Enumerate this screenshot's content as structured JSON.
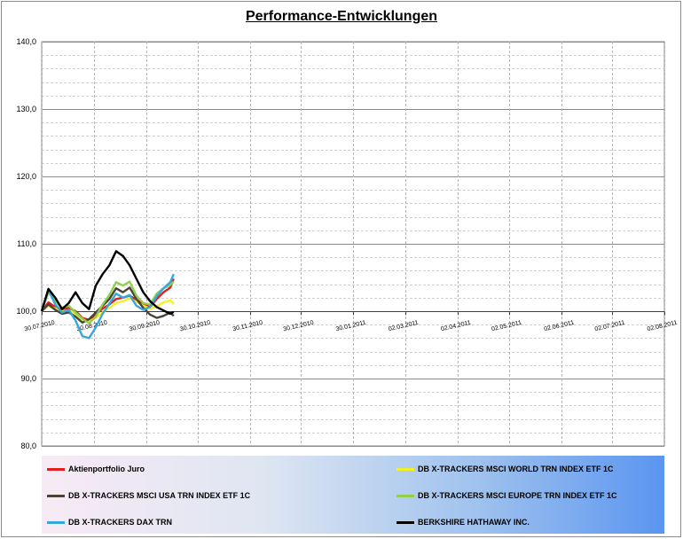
{
  "title": "Performance-Entwicklungen",
  "chart_data": {
    "type": "line",
    "title": "Performance-Entwicklungen",
    "ylim": [
      80,
      140
    ],
    "y_ticks": [
      "80,0",
      "90,0",
      "100,0",
      "110,0",
      "120,0",
      "130,0",
      "140,0"
    ],
    "x_tick_labels": [
      "30.07.2010",
      "30.08.2010",
      "30.09.2010",
      "30.10.2010",
      "30.11.2010",
      "30.12.2010",
      "30.01.2011",
      "02.03.2011",
      "02.04.2011",
      "02.05.2011",
      "02.06.2011",
      "02.07.2011",
      "02.08.2011"
    ],
    "grid": true,
    "legend_position": "bottom",
    "series": [
      {
        "name": "Aktienportfolio Juro",
        "color": "#e0201b",
        "points": [
          [
            "30.07.2010",
            100.0
          ],
          [
            "03.08.2010",
            101.3
          ],
          [
            "07.08.2010",
            100.6
          ],
          [
            "11.08.2010",
            100.2
          ],
          [
            "15.08.2010",
            100.5
          ],
          [
            "19.08.2010",
            100.0
          ],
          [
            "23.08.2010",
            99.0
          ],
          [
            "27.08.2010",
            98.7
          ],
          [
            "31.08.2010",
            99.5
          ],
          [
            "04.09.2010",
            100.4
          ],
          [
            "08.09.2010",
            101.0
          ],
          [
            "12.09.2010",
            101.8
          ],
          [
            "16.09.2010",
            102.0
          ],
          [
            "20.09.2010",
            102.3
          ],
          [
            "24.09.2010",
            101.7
          ],
          [
            "28.09.2010",
            101.1
          ],
          [
            "02.10.2010",
            100.6
          ],
          [
            "06.10.2010",
            101.8
          ],
          [
            "10.10.2010",
            102.8
          ],
          [
            "14.10.2010",
            103.5
          ],
          [
            "16.10.2010",
            104.8
          ]
        ]
      },
      {
        "name": "DB X-TRACKERS MSCI WORLD TRN INDEX ETF 1C",
        "color": "#f1f12a",
        "points": [
          [
            "30.07.2010",
            100.0
          ],
          [
            "03.08.2010",
            100.8
          ],
          [
            "07.08.2010",
            100.4
          ],
          [
            "11.08.2010",
            100.0
          ],
          [
            "15.08.2010",
            100.1
          ],
          [
            "19.08.2010",
            99.6
          ],
          [
            "23.08.2010",
            98.7
          ],
          [
            "27.08.2010",
            98.5
          ],
          [
            "31.08.2010",
            99.0
          ],
          [
            "04.09.2010",
            99.8
          ],
          [
            "08.09.2010",
            100.5
          ],
          [
            "12.09.2010",
            101.2
          ],
          [
            "16.09.2010",
            101.5
          ],
          [
            "20.09.2010",
            101.9
          ],
          [
            "24.09.2010",
            101.4
          ],
          [
            "28.09.2010",
            100.8
          ],
          [
            "02.10.2010",
            100.4
          ],
          [
            "06.10.2010",
            100.7
          ],
          [
            "10.10.2010",
            101.3
          ],
          [
            "14.10.2010",
            101.6
          ],
          [
            "16.10.2010",
            101.1
          ]
        ]
      },
      {
        "name": "DB X-TRACKERS MSCI USA TRN INDEX ETF 1C",
        "color": "#4a4336",
        "points": [
          [
            "30.07.2010",
            100.0
          ],
          [
            "03.08.2010",
            101.0
          ],
          [
            "07.08.2010",
            100.2
          ],
          [
            "11.08.2010",
            99.6
          ],
          [
            "15.08.2010",
            99.8
          ],
          [
            "19.08.2010",
            99.2
          ],
          [
            "23.08.2010",
            98.3
          ],
          [
            "27.08.2010",
            98.8
          ],
          [
            "31.08.2010",
            99.8
          ],
          [
            "04.09.2010",
            100.8
          ],
          [
            "08.09.2010",
            101.8
          ],
          [
            "12.09.2010",
            103.4
          ],
          [
            "16.09.2010",
            102.8
          ],
          [
            "20.09.2010",
            103.5
          ],
          [
            "24.09.2010",
            101.8
          ],
          [
            "28.09.2010",
            100.5
          ],
          [
            "02.10.2010",
            99.5
          ],
          [
            "06.10.2010",
            99.0
          ],
          [
            "10.10.2010",
            99.3
          ],
          [
            "14.10.2010",
            99.8
          ],
          [
            "16.10.2010",
            99.3
          ]
        ]
      },
      {
        "name": "DB X-TRACKERS MSCI EUROPE TRN INDEX ETF 1C",
        "color": "#8fd14f",
        "points": [
          [
            "30.07.2010",
            100.0
          ],
          [
            "03.08.2010",
            102.8
          ],
          [
            "07.08.2010",
            101.5
          ],
          [
            "11.08.2010",
            100.5
          ],
          [
            "15.08.2010",
            100.8
          ],
          [
            "19.08.2010",
            99.8
          ],
          [
            "23.08.2010",
            98.9
          ],
          [
            "27.08.2010",
            98.2
          ],
          [
            "31.08.2010",
            99.2
          ],
          [
            "04.09.2010",
            101.0
          ],
          [
            "08.09.2010",
            102.4
          ],
          [
            "12.09.2010",
            104.3
          ],
          [
            "16.09.2010",
            103.8
          ],
          [
            "20.09.2010",
            104.4
          ],
          [
            "24.09.2010",
            102.3
          ],
          [
            "28.09.2010",
            101.2
          ],
          [
            "02.10.2010",
            101.0
          ],
          [
            "06.10.2010",
            102.6
          ],
          [
            "10.10.2010",
            103.4
          ],
          [
            "14.10.2010",
            103.9
          ],
          [
            "16.10.2010",
            104.4
          ]
        ]
      },
      {
        "name": "DB X-TRACKERS DAX TRN",
        "color": "#35a7dd",
        "points": [
          [
            "30.07.2010",
            100.0
          ],
          [
            "03.08.2010",
            103.2
          ],
          [
            "07.08.2010",
            101.0
          ],
          [
            "11.08.2010",
            99.8
          ],
          [
            "15.08.2010",
            100.2
          ],
          [
            "19.08.2010",
            98.6
          ],
          [
            "23.08.2010",
            96.3
          ],
          [
            "27.08.2010",
            96.0
          ],
          [
            "31.08.2010",
            97.6
          ],
          [
            "04.09.2010",
            99.6
          ],
          [
            "08.09.2010",
            101.1
          ],
          [
            "12.09.2010",
            102.6
          ],
          [
            "16.09.2010",
            102.0
          ],
          [
            "20.09.2010",
            102.4
          ],
          [
            "24.09.2010",
            100.8
          ],
          [
            "28.09.2010",
            100.2
          ],
          [
            "02.10.2010",
            100.6
          ],
          [
            "06.10.2010",
            102.2
          ],
          [
            "10.10.2010",
            103.4
          ],
          [
            "14.10.2010",
            104.3
          ],
          [
            "16.10.2010",
            105.5
          ]
        ]
      },
      {
        "name": "BERKSHIRE HATHAWAY INC.",
        "color": "#000000",
        "points": [
          [
            "30.07.2010",
            100.0
          ],
          [
            "03.08.2010",
            103.3
          ],
          [
            "07.08.2010",
            102.0
          ],
          [
            "11.08.2010",
            100.3
          ],
          [
            "15.08.2010",
            101.2
          ],
          [
            "19.08.2010",
            102.8
          ],
          [
            "23.08.2010",
            101.2
          ],
          [
            "27.08.2010",
            100.3
          ],
          [
            "31.08.2010",
            103.8
          ],
          [
            "04.09.2010",
            105.5
          ],
          [
            "08.09.2010",
            106.8
          ],
          [
            "12.09.2010",
            108.9
          ],
          [
            "16.09.2010",
            108.2
          ],
          [
            "20.09.2010",
            106.8
          ],
          [
            "24.09.2010",
            104.8
          ],
          [
            "28.09.2010",
            102.8
          ],
          [
            "02.10.2010",
            101.5
          ],
          [
            "06.10.2010",
            100.6
          ],
          [
            "10.10.2010",
            100.1
          ],
          [
            "14.10.2010",
            99.6
          ],
          [
            "16.10.2010",
            99.9
          ]
        ]
      }
    ]
  }
}
